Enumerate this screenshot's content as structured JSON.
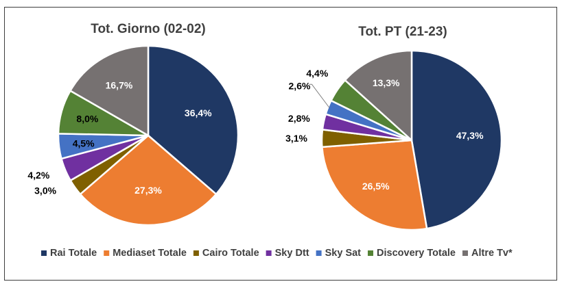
{
  "chart_data": [
    {
      "type": "pie",
      "title": "Tot. Giorno (02-02)",
      "categories": [
        "Rai Totale",
        "Mediaset Totale",
        "Cairo Totale",
        "Sky Dtt",
        "Sky Sat",
        "Discovery Totale",
        "Altre Tv*"
      ],
      "values": [
        36.4,
        27.3,
        3.0,
        4.2,
        4.5,
        8.0,
        16.7
      ],
      "labels": [
        "36,4%",
        "27,3%",
        "3,0%",
        "4,2%",
        "4,5%",
        "8,0%",
        "16,7%"
      ]
    },
    {
      "type": "pie",
      "title": "Tot. PT (21-23)",
      "categories": [
        "Rai Totale",
        "Mediaset Totale",
        "Cairo Totale",
        "Sky Dtt",
        "Sky Sat",
        "Discovery Totale",
        "Altre Tv*"
      ],
      "values": [
        47.3,
        26.5,
        3.1,
        2.8,
        2.6,
        4.4,
        13.3
      ],
      "labels": [
        "47,3%",
        "26,5%",
        "3,1%",
        "2,8%",
        "2,6%",
        "4,4%",
        "13,3%"
      ]
    }
  ],
  "legend": {
    "position": "bottom",
    "items": [
      "Rai Totale",
      "Mediaset Totale",
      "Cairo Totale",
      "Sky Dtt",
      "Sky Sat",
      "Discovery Totale",
      "Altre Tv*"
    ]
  },
  "colors": [
    "#1f3864",
    "#ed7d31",
    "#7f6000",
    "#7030a0",
    "#4472c4",
    "#548235",
    "#767171"
  ],
  "label_colors": [
    "#ffffff",
    "#ffffff",
    "#000000",
    "#000000",
    "#000000",
    "#000000",
    "#ffffff"
  ]
}
